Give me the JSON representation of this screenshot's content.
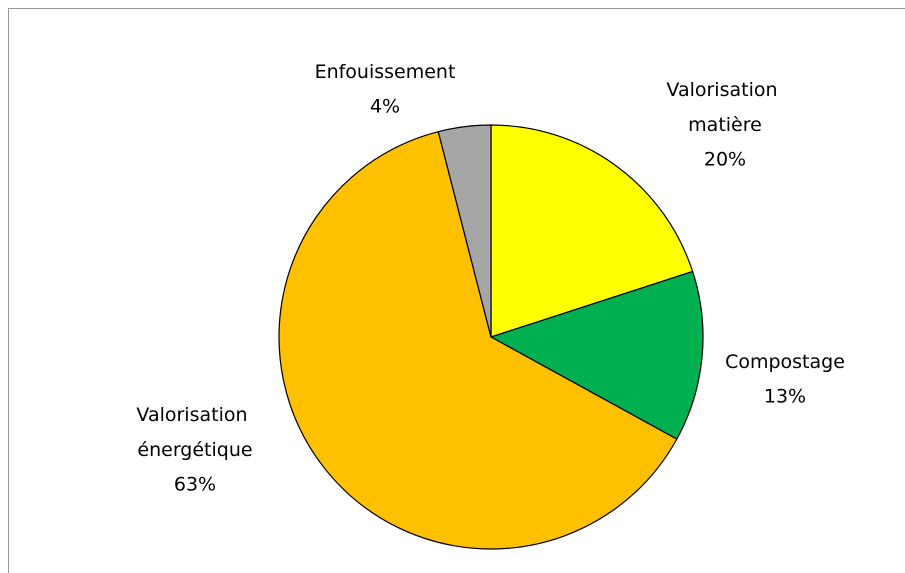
{
  "chart_data": {
    "type": "pie",
    "categories": [
      "Valorisation matière",
      "Compostage",
      "Valorisation énergétique",
      "Enfouissement"
    ],
    "values": [
      20,
      13,
      63,
      4
    ],
    "value_labels": [
      "20%",
      "13%",
      "63%",
      "4%"
    ],
    "colors": [
      "#ffff00",
      "#00b050",
      "#ffc000",
      "#a6a6a6"
    ]
  }
}
